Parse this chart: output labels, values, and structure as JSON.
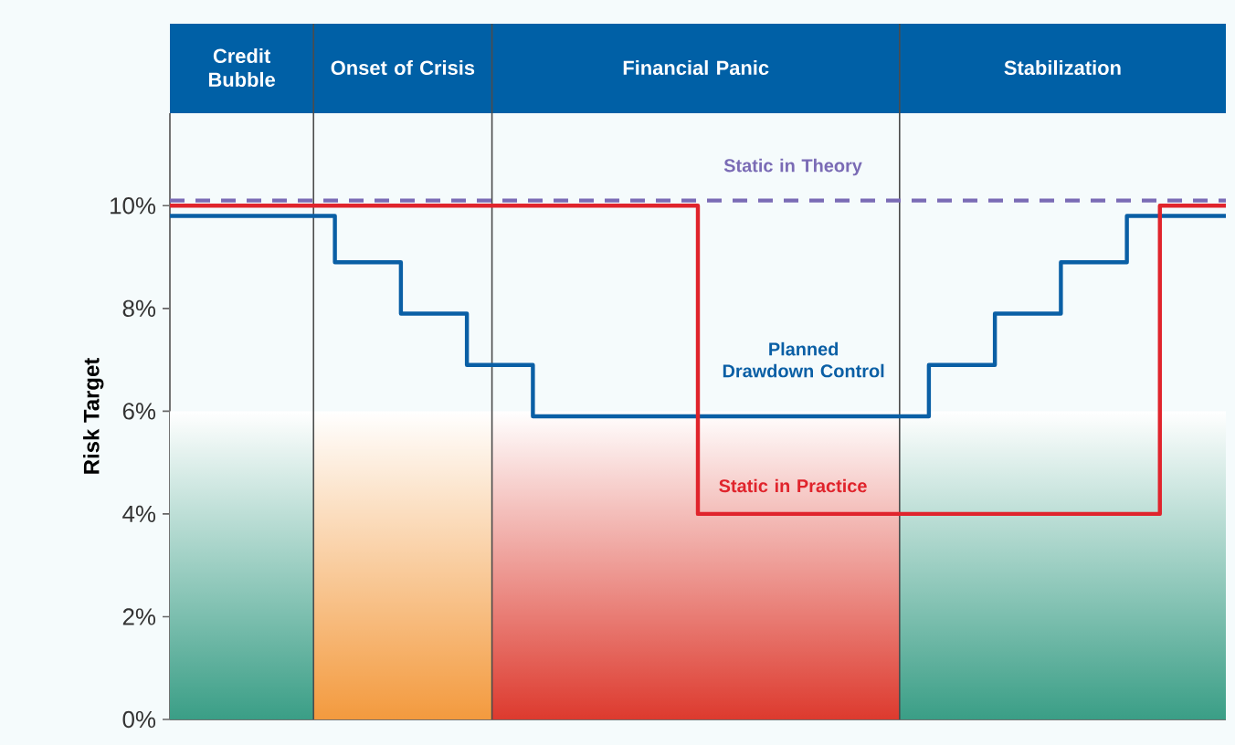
{
  "chart_data": {
    "type": "step",
    "ylabel": "Risk Target",
    "annotations": [
      "Credit Bubble",
      "Onset of Crisis",
      "Financial Panic",
      "Stabilization"
    ],
    "categories": [
      null,
      null,
      null,
      null,
      null,
      null,
      null,
      null,
      null,
      null,
      null,
      null,
      null,
      null,
      null,
      null,
      null,
      null,
      null,
      null,
      null,
      null,
      null,
      null,
      null,
      null,
      null,
      null,
      null,
      null,
      null,
      null,
      null
    ],
    "ylim": [
      0,
      11.8
    ],
    "yticks": [
      {
        "value": 0,
        "label": "0%"
      },
      {
        "value": 2,
        "label": "2%"
      },
      {
        "value": 4,
        "label": "4%"
      },
      {
        "value": 6,
        "label": "6%"
      },
      {
        "value": 8,
        "label": "8%"
      },
      {
        "value": 10,
        "label": "10%"
      }
    ],
    "tick_labels": "y",
    "series": [
      {
        "name": "Static in Theory",
        "type": "line",
        "line_style": "dashed",
        "color": "#7a6bb5",
        "values": [
          10.1,
          10.1,
          10.1,
          10.1,
          10.1,
          10.1,
          10.1,
          10.1,
          10.1,
          10.1,
          10.1,
          10.1,
          10.1,
          10.1,
          10.1,
          10.1,
          10.1,
          10.1,
          10.1,
          10.1,
          10.1,
          10.1,
          10.1,
          10.1,
          10.1,
          10.1,
          10.1,
          10.1,
          10.1,
          10.1,
          10.1,
          10.1,
          10.1
        ]
      },
      {
        "name": "Planned Drawdown Control",
        "color": "#0a5fa5",
        "values": [
          9.8,
          9.8,
          9.8,
          9.8,
          9.8,
          8.9,
          8.9,
          7.9,
          7.9,
          6.9,
          6.9,
          5.9,
          5.9,
          5.9,
          5.9,
          5.9,
          5.9,
          5.9,
          5.9,
          5.9,
          5.9,
          5.9,
          5.9,
          6.9,
          6.9,
          7.9,
          7.9,
          8.9,
          8.9,
          9.8,
          9.8,
          9.8,
          9.8
        ]
      },
      {
        "name": "Static in Practice",
        "color": "#e0242c",
        "values": [
          10,
          10,
          10,
          10,
          10,
          10,
          10,
          10,
          10,
          10,
          10,
          10,
          10,
          10,
          10,
          10,
          4,
          4,
          4,
          4,
          4,
          4,
          4,
          4,
          4,
          4,
          4,
          4,
          4,
          4,
          10,
          10,
          10
        ]
      }
    ]
  }
}
